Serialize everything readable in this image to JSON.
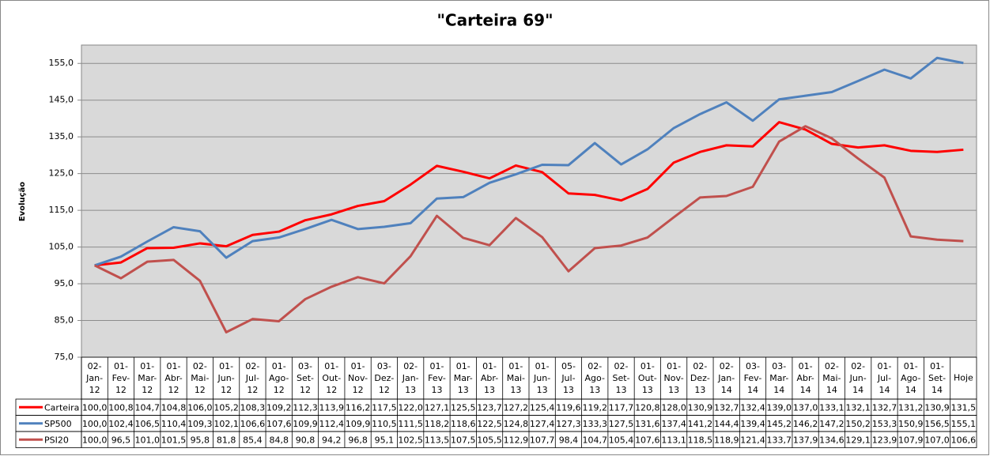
{
  "chart_data": {
    "type": "line",
    "title": "\"Carteira 69\"",
    "y_label": "Evolução",
    "categories": [
      "02-Jan-12",
      "01-Fev-12",
      "01-Mar-12",
      "01-Abr-12",
      "02-Mai-12",
      "01-Jun-12",
      "02-Jul-12",
      "01-Ago-12",
      "03-Set-12",
      "01-Out-12",
      "01-Nov-12",
      "03-Dez-12",
      "02-Jan-13",
      "01-Fev-13",
      "01-Mar-13",
      "01-Abr-13",
      "01-Mai-13",
      "01-Jun-13",
      "05-Jul-13",
      "02-Ago-13",
      "02-Set-13",
      "01-Out-13",
      "01-Nov-13",
      "02-Dez-13",
      "02-Jan-14",
      "03-Fev-14",
      "03-Mar-14",
      "01-Abr-14",
      "02-Mai-14",
      "02-Jun-14",
      "01-Jul-14",
      "01-Ago-14",
      "01-Set-14",
      "Hoje"
    ],
    "series": [
      {
        "name": "Carteira",
        "color": "#ff0000",
        "values": [
          100.0,
          100.8,
          104.7,
          104.8,
          106.0,
          105.2,
          108.3,
          109.2,
          112.3,
          113.9,
          116.2,
          117.5,
          122.0,
          127.1,
          125.5,
          123.7,
          127.2,
          125.4,
          119.6,
          119.2,
          117.7,
          120.8,
          128.0,
          130.9,
          132.7,
          132.4,
          139.0,
          137.0,
          133.1,
          132.1,
          132.7,
          131.2,
          130.9,
          131.5
        ],
        "value_labels": [
          "100,0",
          "100,8",
          "104,7",
          "104,8",
          "106,0",
          "105,2",
          "108,3",
          "109,2",
          "112,3",
          "113,9",
          "116,2",
          "117,5",
          "122,0",
          "127,1",
          "125,5",
          "123,7",
          "127,2",
          "125,4",
          "119,6",
          "119,2",
          "117,7",
          "120,8",
          "128,0",
          "130,9",
          "132,7",
          "132,4",
          "139,0",
          "137,0",
          "133,1",
          "132,1",
          "132,7",
          "131,2",
          "130,9",
          "131,5"
        ]
      },
      {
        "name": "SP500",
        "color": "#4f81bd",
        "values": [
          100.0,
          102.4,
          106.5,
          110.4,
          109.3,
          102.1,
          106.6,
          107.6,
          109.9,
          112.4,
          109.9,
          110.5,
          111.5,
          118.2,
          118.6,
          122.5,
          124.8,
          127.4,
          127.3,
          133.3,
          127.5,
          131.6,
          137.4,
          141.2,
          144.4,
          139.4,
          145.2,
          146.2,
          147.2,
          150.2,
          153.3,
          150.9,
          156.5,
          155.1
        ],
        "value_labels": [
          "100,0",
          "102,4",
          "106,5",
          "110,4",
          "109,3",
          "102,1",
          "106,6",
          "107,6",
          "109,9",
          "112,4",
          "109,9",
          "110,5",
          "111,5",
          "118,2",
          "118,6",
          "122,5",
          "124,8",
          "127,4",
          "127,3",
          "133,3",
          "127,5",
          "131,6",
          "137,4",
          "141,2",
          "144,4",
          "139,4",
          "145,2",
          "146,2",
          "147,2",
          "150,2",
          "153,3",
          "150,9",
          "156,5",
          "155,1"
        ]
      },
      {
        "name": "PSI20",
        "color": "#c0504d",
        "values": [
          100.0,
          96.5,
          101.0,
          101.5,
          95.8,
          81.8,
          85.4,
          84.8,
          90.8,
          94.2,
          96.8,
          95.1,
          102.5,
          113.5,
          107.5,
          105.5,
          112.9,
          107.7,
          98.4,
          104.7,
          105.4,
          107.6,
          113.1,
          118.5,
          118.9,
          121.4,
          133.7,
          137.9,
          134.6,
          129.1,
          123.9,
          107.9,
          107.0,
          106.6
        ],
        "value_labels": [
          "100,0",
          "96,5",
          "101,0",
          "101,5",
          "95,8",
          "81,8",
          "85,4",
          "84,8",
          "90,8",
          "94,2",
          "96,8",
          "95,1",
          "102,5",
          "113,5",
          "107,5",
          "105,5",
          "112,9",
          "107,7",
          "98,4",
          "104,7",
          "105,4",
          "107,6",
          "113,1",
          "118,5",
          "118,9",
          "121,4",
          "133,7",
          "137,9",
          "134,6",
          "129,1",
          "123,9",
          "107,9",
          "107,0",
          "106,6"
        ]
      }
    ],
    "ylim": [
      75,
      160
    ],
    "yticks": [
      {
        "value": 75,
        "label": "75,0"
      },
      {
        "value": 85,
        "label": "85,0"
      },
      {
        "value": 95,
        "label": "95,0"
      },
      {
        "value": 105,
        "label": "105,0"
      },
      {
        "value": 115,
        "label": "115,0"
      },
      {
        "value": 125,
        "label": "125,0"
      },
      {
        "value": 135,
        "label": "135,0"
      },
      {
        "value": 145,
        "label": "145,0"
      },
      {
        "value": 155,
        "label": "155,0"
      }
    ],
    "grid": true,
    "plot_background": "#d9d9d9"
  }
}
